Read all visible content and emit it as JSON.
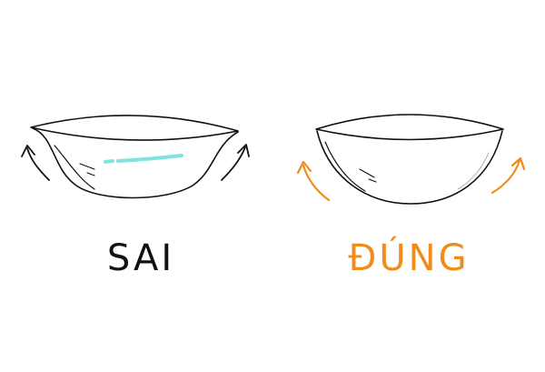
{
  "labels": {
    "wrong": "SAI",
    "right": "ĐÚNG"
  },
  "colors": {
    "outline": "#111111",
    "highlight_wrong": "#7fe3e0",
    "accent_right": "#f08c1c"
  },
  "icons": {
    "wrong_shape": "flared-bowl-lens",
    "right_shape": "round-bowl-lens",
    "wrong_arrows": "outward-curved-arrows",
    "right_arrows": "upward-curved-arrows"
  }
}
